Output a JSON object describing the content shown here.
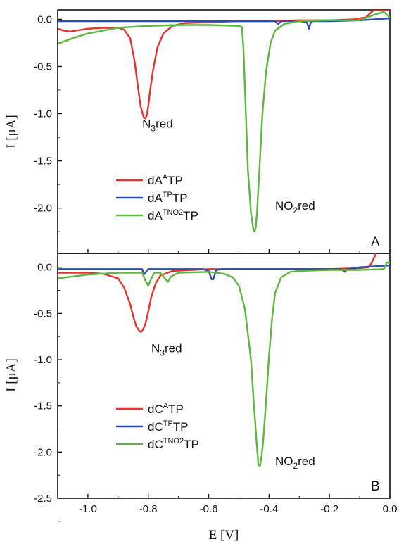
{
  "chart_data": [
    {
      "type": "line",
      "panel_label": "A",
      "xlabel": "E [V]",
      "ylabel": "I [μA]",
      "xlim": [
        -1.1,
        0.0
      ],
      "ylim": [
        -2.48,
        0.1
      ],
      "yticks": [
        0.0,
        -0.5,
        -1.0,
        -1.5,
        -2.0
      ],
      "ytick_labels": [
        "0.0",
        "-0.5",
        "-1.0",
        "-1.5",
        "-2.0"
      ],
      "grid": false,
      "legend_position": "lower-left",
      "series": [
        {
          "name": "dA^A TP",
          "legend_base": "dA",
          "legend_sup": "A",
          "legend_tail": "TP",
          "color": "#e8312a",
          "x": [
            -1.1,
            -1.08,
            -1.06,
            -1.04,
            -1.0,
            -0.95,
            -0.9,
            -0.88,
            -0.86,
            -0.845,
            -0.835,
            -0.825,
            -0.815,
            -0.81,
            -0.805,
            -0.8,
            -0.795,
            -0.785,
            -0.77,
            -0.75,
            -0.72,
            -0.68,
            -0.6,
            -0.5,
            -0.4,
            -0.3,
            -0.2,
            -0.12,
            -0.08,
            -0.06,
            -0.05,
            -0.03,
            0.0
          ],
          "y": [
            -0.1,
            -0.12,
            -0.13,
            -0.12,
            -0.1,
            -0.09,
            -0.09,
            -0.11,
            -0.2,
            -0.45,
            -0.7,
            -0.93,
            -1.04,
            -1.05,
            -1.02,
            -0.92,
            -0.78,
            -0.55,
            -0.3,
            -0.15,
            -0.07,
            -0.04,
            -0.03,
            -0.02,
            -0.02,
            -0.01,
            -0.01,
            0.0,
            0.02,
            0.08,
            0.1,
            0.1,
            0.1
          ]
        },
        {
          "name": "dA^TP TP",
          "legend_base": "dA",
          "legend_sup": "TP",
          "legend_tail": "TP",
          "color": "#2a4fb0",
          "x": [
            -1.1,
            -0.8,
            -0.5,
            -0.4,
            -0.38,
            -0.37,
            -0.36,
            -0.33,
            -0.3,
            -0.275,
            -0.268,
            -0.262,
            -0.255,
            -0.2,
            -0.1,
            -0.05,
            0.0
          ],
          "y": [
            -0.02,
            -0.02,
            -0.02,
            -0.02,
            -0.02,
            -0.05,
            -0.02,
            -0.02,
            -0.02,
            -0.03,
            -0.1,
            -0.03,
            -0.02,
            -0.02,
            -0.01,
            0.0,
            0.01
          ]
        },
        {
          "name": "dA^TNO2 TP",
          "legend_base": "dA",
          "legend_sup": "TNO2",
          "legend_tail": "TP",
          "color": "#5cb83f",
          "x": [
            -1.1,
            -1.05,
            -1.0,
            -0.95,
            -0.9,
            -0.85,
            -0.8,
            -0.7,
            -0.6,
            -0.5,
            -0.49,
            -0.485,
            -0.478,
            -0.47,
            -0.46,
            -0.452,
            -0.448,
            -0.444,
            -0.44,
            -0.432,
            -0.422,
            -0.41,
            -0.395,
            -0.38,
            -0.35,
            -0.3,
            -0.2,
            -0.1,
            -0.05,
            -0.02,
            0.0
          ],
          "y": [
            -0.26,
            -0.2,
            -0.15,
            -0.12,
            -0.09,
            -0.08,
            -0.07,
            -0.06,
            -0.06,
            -0.07,
            -0.08,
            -0.3,
            -0.9,
            -1.6,
            -2.05,
            -2.23,
            -2.25,
            -2.2,
            -2.05,
            -1.6,
            -1.0,
            -0.55,
            -0.25,
            -0.12,
            -0.05,
            -0.02,
            -0.01,
            -0.01,
            0.05,
            0.08,
            0.02
          ]
        }
      ],
      "annotations": [
        {
          "base": "N",
          "sub": "3",
          "tail": "red",
          "x": -0.82,
          "y": -1.06
        },
        {
          "base": "NO",
          "sub": "2",
          "tail": "red",
          "x": -0.38,
          "y": -1.93
        }
      ]
    },
    {
      "type": "line",
      "panel_label": "B",
      "xlabel": "E [V]",
      "ylabel": "I [μA]",
      "xlim": [
        -1.1,
        0.0
      ],
      "ylim": [
        -2.5,
        0.15
      ],
      "xticks": [
        -1.0,
        -0.8,
        -0.6,
        -0.4,
        -0.2,
        0.0
      ],
      "xtick_labels": [
        "-1.0",
        "-0.8",
        "-0.6",
        "-0.4",
        "-0.2",
        "0.0"
      ],
      "yticks": [
        0.0,
        -0.5,
        -1.0,
        -1.5,
        -2.0,
        -2.5
      ],
      "ytick_labels": [
        "0.0",
        "-0.5",
        "-1.0",
        "-1.5",
        "-2.0",
        "-2.5"
      ],
      "grid": false,
      "legend_position": "lower-left",
      "series": [
        {
          "name": "dC^A TP",
          "legend_base": "dC",
          "legend_sup": "A",
          "legend_tail": "TP",
          "color": "#e8312a",
          "x": [
            -1.1,
            -1.0,
            -0.95,
            -0.9,
            -0.88,
            -0.86,
            -0.85,
            -0.84,
            -0.83,
            -0.825,
            -0.82,
            -0.81,
            -0.8,
            -0.79,
            -0.775,
            -0.76,
            -0.72,
            -0.6,
            -0.5,
            -0.4,
            -0.3,
            -0.2,
            -0.1,
            -0.07,
            -0.06,
            -0.05,
            -0.04
          ],
          "y": [
            -0.06,
            -0.06,
            -0.07,
            -0.12,
            -0.22,
            -0.4,
            -0.53,
            -0.64,
            -0.69,
            -0.7,
            -0.69,
            -0.62,
            -0.48,
            -0.32,
            -0.17,
            -0.09,
            -0.04,
            -0.02,
            -0.02,
            -0.02,
            -0.02,
            -0.02,
            -0.01,
            0.0,
            0.05,
            0.12,
            0.2
          ]
        },
        {
          "name": "dC^TP TP",
          "legend_base": "dC",
          "legend_sup": "TP",
          "legend_tail": "TP",
          "color": "#2a4fb0",
          "x": [
            -1.1,
            -0.83,
            -0.82,
            -0.815,
            -0.8,
            -0.62,
            -0.6,
            -0.59,
            -0.585,
            -0.575,
            -0.55,
            -0.4,
            -0.2,
            -0.16,
            -0.15,
            -0.14,
            -0.1,
            0.0
          ],
          "y": [
            -0.02,
            -0.02,
            -0.02,
            -0.08,
            -0.02,
            -0.02,
            -0.04,
            -0.13,
            -0.13,
            -0.03,
            -0.02,
            -0.02,
            -0.02,
            -0.02,
            -0.05,
            -0.02,
            0.0,
            0.02
          ]
        },
        {
          "name": "dC^TNO2 TP",
          "legend_base": "dC",
          "legend_sup": "TNO2",
          "legend_tail": "TP",
          "color": "#5cb83f",
          "x": [
            -1.1,
            -1.0,
            -0.9,
            -0.82,
            -0.81,
            -0.8,
            -0.79,
            -0.78,
            -0.76,
            -0.745,
            -0.735,
            -0.725,
            -0.7,
            -0.6,
            -0.55,
            -0.52,
            -0.5,
            -0.48,
            -0.46,
            -0.45,
            -0.44,
            -0.435,
            -0.43,
            -0.425,
            -0.42,
            -0.41,
            -0.4,
            -0.39,
            -0.38,
            -0.36,
            -0.33,
            -0.3,
            -0.2,
            -0.1,
            -0.02,
            -0.01,
            0.0
          ],
          "y": [
            -0.12,
            -0.08,
            -0.06,
            -0.06,
            -0.14,
            -0.2,
            -0.12,
            -0.06,
            -0.06,
            -0.12,
            -0.16,
            -0.1,
            -0.06,
            -0.05,
            -0.07,
            -0.11,
            -0.2,
            -0.45,
            -1.0,
            -1.5,
            -1.95,
            -2.14,
            -2.15,
            -2.05,
            -1.9,
            -1.45,
            -0.95,
            -0.55,
            -0.28,
            -0.11,
            -0.05,
            -0.04,
            -0.03,
            -0.03,
            -0.02,
            0.05,
            0.05
          ]
        }
      ],
      "annotations": [
        {
          "base": "N",
          "sub": "3",
          "tail": "red",
          "x": -0.79,
          "y": -0.83
        },
        {
          "base": "NO",
          "sub": "2",
          "tail": "red",
          "x": -0.38,
          "y": -2.05
        }
      ]
    }
  ]
}
